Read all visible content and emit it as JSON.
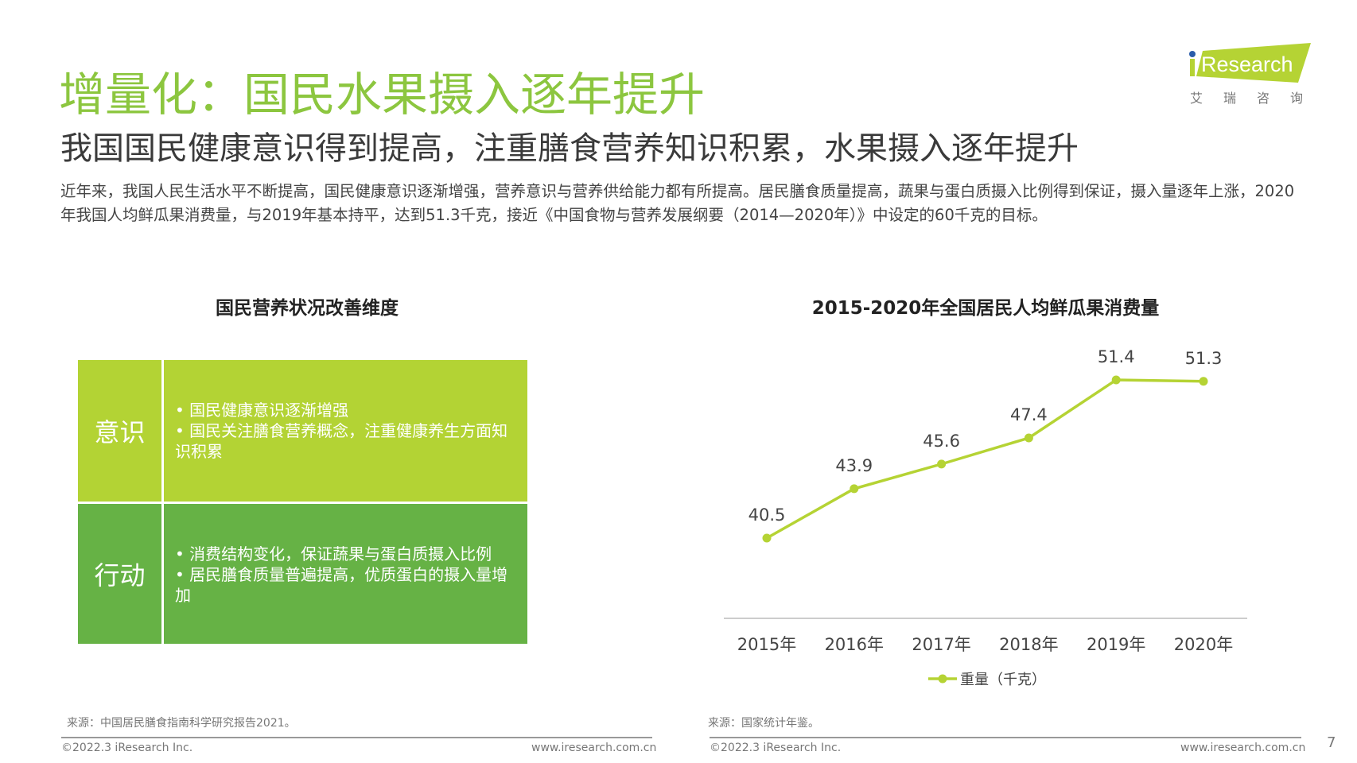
{
  "header": {
    "title": "增量化：国民水果摄入逐年提升",
    "subtitle": "我国国民健康意识得到提高，注重膳食营养知识积累，水果摄入逐年提升",
    "paragraph": "近年来，我国人民生活水平不断提高，国民健康意识逐渐增强，营养意识与营养供给能力都有所提高。居民膳食质量提高，蔬果与蛋白质摄入比例得到保证，摄入量逐年上涨，2020年我国人均鲜瓜果消费量，与2019年基本持平，达到51.3千克，接近《中国食物与营养发展纲要（2014—2020年）》中设定的60千克的目标。"
  },
  "logo": {
    "text": "iResearch",
    "cn": "艾瑞咨询",
    "color": "#b5d334",
    "dot_color": "#2a5caa"
  },
  "left_panel": {
    "heading": "国民营养状况改善维度",
    "rows": [
      {
        "label": "意识",
        "bullets": [
          "• 国民健康意识逐渐增强",
          "• 国民关注膳食营养概念，注重健康养生方面知识积累"
        ],
        "color": "#b3d334"
      },
      {
        "label": "行动",
        "bullets": [
          "• 消费结构变化，保证蔬果与蛋白质摄入比例",
          "• 居民膳食质量普遍提高，优质蛋白的摄入量增加"
        ],
        "color": "#66b245"
      }
    ],
    "source": "来源：中国居民膳食指南科学研究报告2021。"
  },
  "chart_data": {
    "type": "line",
    "title": "2015-2020年全国居民人均鲜瓜果消费量",
    "categories": [
      "2015年",
      "2016年",
      "2017年",
      "2018年",
      "2019年",
      "2020年"
    ],
    "series": [
      {
        "name": "重量（千克）",
        "values": [
          40.5,
          43.9,
          45.6,
          47.4,
          51.4,
          51.3
        ],
        "color": "#b5d334"
      }
    ],
    "legend": "bottom",
    "grid": false,
    "data_labels": true
  },
  "right_panel": {
    "source": "来源：国家统计年鉴。"
  },
  "footer": {
    "copyright": "©2022.3 iResearch Inc.",
    "url": "www.iresearch.com.cn",
    "page": "7"
  }
}
